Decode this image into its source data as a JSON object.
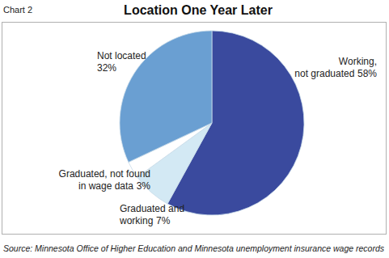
{
  "chart_data": {
    "type": "pie",
    "title": "Location One Year Later",
    "annotations": [
      "Chart 2"
    ],
    "source": "Source: Minnesota Office of Higher Education and Minnesota unemployment insurance wage records",
    "categories": [
      "Working,\nnot graduated",
      "Graduated and\nworking",
      "Graduated, not found\nin wage data",
      "Not located"
    ],
    "values": [
      58,
      7,
      3,
      32
    ],
    "value_labels": [
      "58%",
      "7%",
      "3%",
      "32%"
    ],
    "colors": [
      "#3a4a9e",
      "#d3e9f4",
      "#ffffff",
      "#6a9fd2"
    ],
    "data_labels": true
  }
}
